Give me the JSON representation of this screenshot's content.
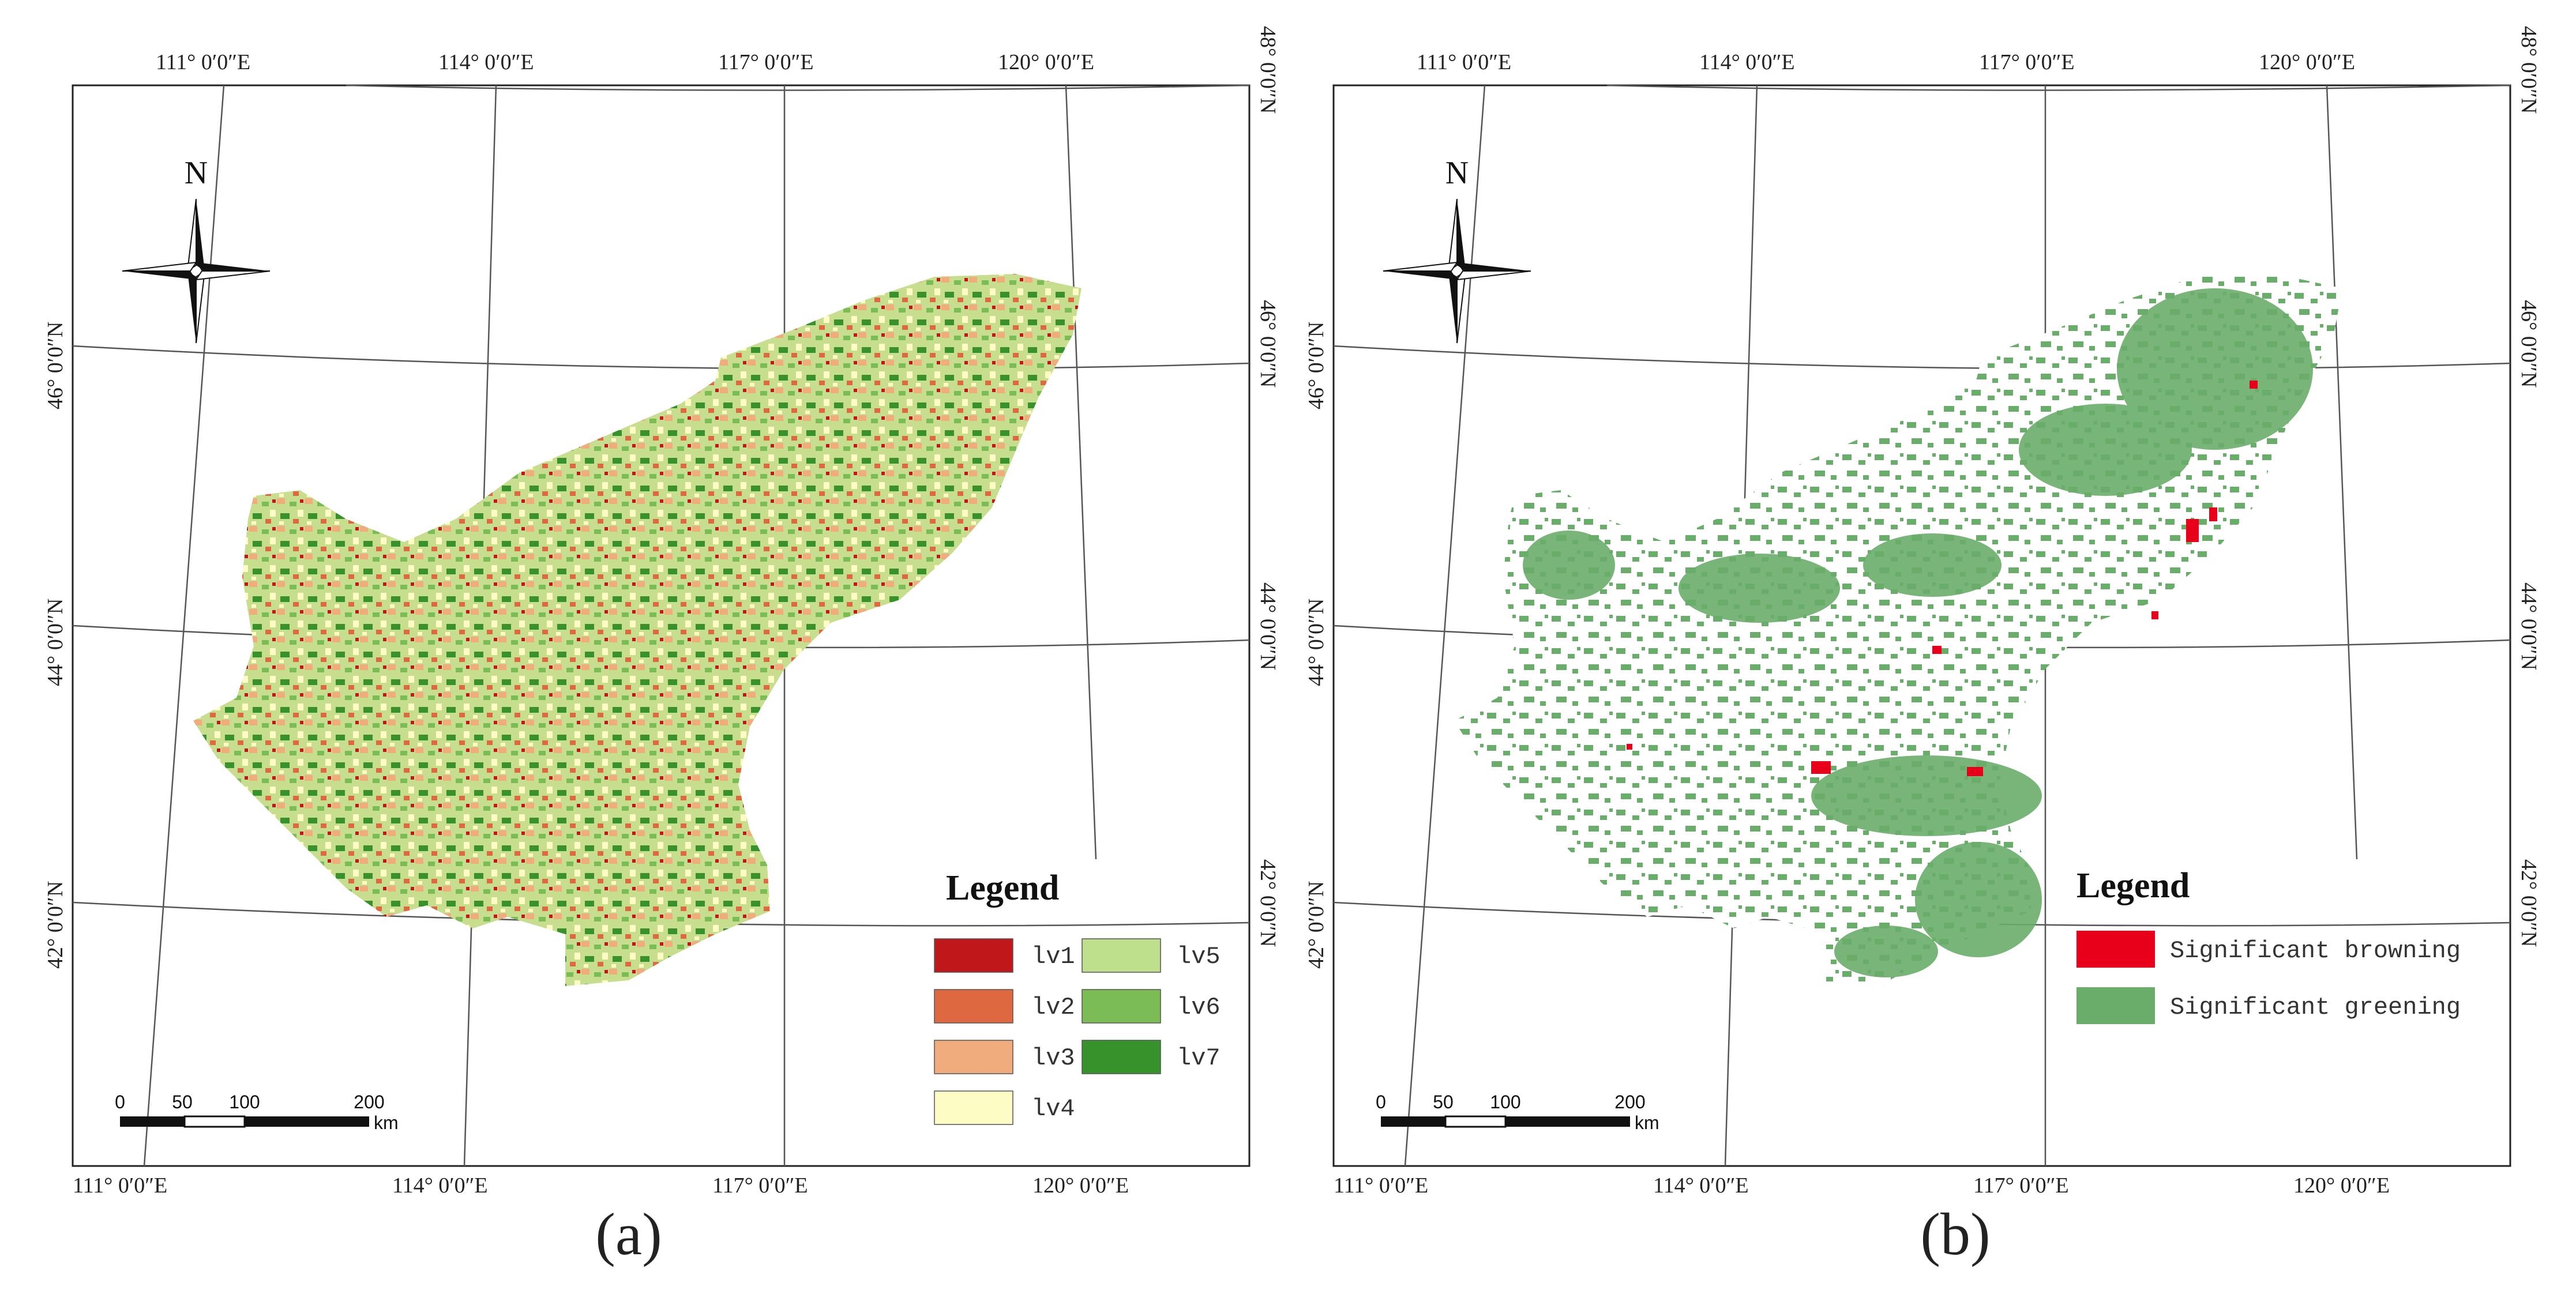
{
  "panels": [
    {
      "id": "a",
      "label": "(a)",
      "top_ticks": [
        "111° 0′0″E",
        "114° 0′0″E",
        "117° 0′0″E",
        "120° 0′0″E"
      ],
      "bottom_ticks": [
        "111° 0′0″E",
        "114° 0′0″E",
        "117° 0′0″E",
        "120° 0′0″E"
      ],
      "left_ticks": [
        "46° 0′0″N",
        "44° 0′0″N",
        "42° 0′0″N"
      ],
      "right_ticks": [
        "48° 0′0″N",
        "46° 0′0″N",
        "44° 0′0″N",
        "42° 0′0″N"
      ],
      "north_label": "N",
      "legend": {
        "title": "Legend",
        "items": [
          {
            "label": "lv1",
            "color": "#c0181a"
          },
          {
            "label": "lv2",
            "color": "#de6840"
          },
          {
            "label": "lv3",
            "color": "#f0ac7c"
          },
          {
            "label": "lv4",
            "color": "#fdfcc4"
          },
          {
            "label": "lv5",
            "color": "#bedf8c"
          },
          {
            "label": "lv6",
            "color": "#7bbd54"
          },
          {
            "label": "lv7",
            "color": "#37922c"
          }
        ]
      },
      "scale": {
        "ticks": [
          "0",
          "50",
          "100",
          "200"
        ],
        "unit": "km"
      }
    },
    {
      "id": "b",
      "label": "(b)",
      "top_ticks": [
        "111° 0′0″E",
        "114° 0′0″E",
        "117° 0′0″E",
        "120° 0′0″E"
      ],
      "bottom_ticks": [
        "111° 0′0″E",
        "114° 0′0″E",
        "117° 0′0″E",
        "120° 0′0″E"
      ],
      "left_ticks": [
        "46° 0′0″N",
        "44° 0′0″N",
        "42° 0′0″N"
      ],
      "right_ticks": [
        "48° 0′0″N",
        "46° 0′0″N",
        "44° 0′0″N",
        "42° 0′0″N"
      ],
      "north_label": "N",
      "legend": {
        "title": "Legend",
        "items": [
          {
            "label": "Significant browning",
            "color": "#e8001a"
          },
          {
            "label": "Significant greening",
            "color": "#6aad6a"
          }
        ]
      },
      "scale": {
        "ticks": [
          "0",
          "50",
          "100",
          "200"
        ],
        "unit": "km"
      }
    }
  ]
}
